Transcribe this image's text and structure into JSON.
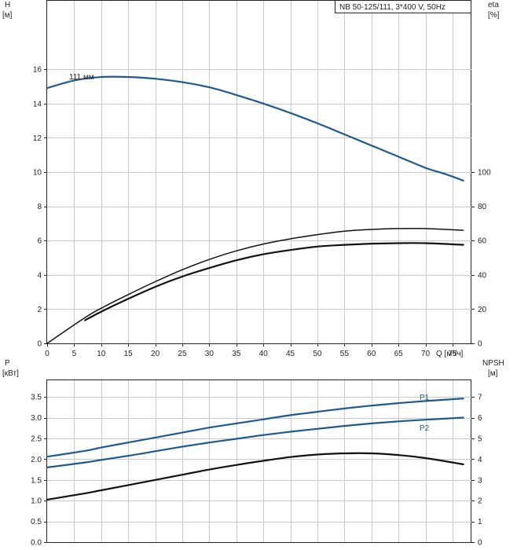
{
  "chart_data": [
    {
      "type": "line",
      "title": "NB 50-125/111, 3*400 V, 50Hz",
      "xlabel": "Q [м³/ч]",
      "x_ticks": [
        0,
        5,
        10,
        15,
        20,
        25,
        30,
        35,
        40,
        45,
        50,
        55,
        60,
        65,
        70,
        75
      ],
      "xlim": [
        0,
        78.5
      ],
      "grid": true,
      "left_axis": {
        "label_line1": "H",
        "label_line2": "[м]",
        "ylim": [
          0,
          20
        ],
        "ticks": [
          0,
          2,
          4,
          6,
          8,
          10,
          12,
          14,
          16
        ]
      },
      "right_axis": {
        "label_line1": "eta",
        "label_line2": "[%]",
        "ylim": [
          0,
          200
        ],
        "ticks": [
          0,
          20,
          40,
          60,
          80,
          100
        ]
      },
      "series": [
        {
          "name": "111 мм",
          "axis": "left",
          "color": "#1f5a8f",
          "x": [
            0,
            5,
            10,
            15,
            20,
            25,
            30,
            35,
            40,
            45,
            50,
            55,
            60,
            65,
            70,
            74,
            77
          ],
          "y": [
            14.9,
            15.35,
            15.55,
            15.55,
            15.45,
            15.25,
            14.95,
            14.5,
            14.0,
            13.45,
            12.85,
            12.2,
            11.55,
            10.9,
            10.25,
            9.85,
            9.5
          ]
        },
        {
          "axis": "right",
          "color": "#111111",
          "x": [
            0,
            7,
            10,
            15,
            20,
            25,
            30,
            35,
            40,
            45,
            50,
            55,
            60,
            65,
            70,
            77
          ],
          "y": [
            0,
            15,
            20.5,
            28.5,
            36,
            43,
            49,
            54,
            58,
            61,
            63.5,
            65.5,
            66.5,
            67,
            67,
            66
          ]
        },
        {
          "axis": "right",
          "color": "#111111",
          "x": [
            7,
            10,
            15,
            20,
            25,
            30,
            35,
            40,
            45,
            50,
            55,
            60,
            65,
            70,
            77
          ],
          "y": [
            13.5,
            18.5,
            26,
            33,
            39,
            44,
            48.5,
            52,
            54.5,
            56.5,
            57.5,
            58.2,
            58.5,
            58.5,
            57.5
          ]
        }
      ]
    },
    {
      "type": "line",
      "xlim": [
        0,
        78.5
      ],
      "grid": true,
      "left_axis": {
        "label_line1": "P",
        "label_line2": "[кВт]",
        "ylim": [
          0,
          3.9
        ],
        "ticks": [
          0.0,
          0.5,
          1.0,
          1.5,
          2.0,
          2.5,
          3.0,
          3.5
        ]
      },
      "right_axis": {
        "label_line1": "NPSH",
        "label_line2": "[м]",
        "ylim": [
          0,
          7.8
        ],
        "ticks": [
          0,
          1,
          2,
          3,
          4,
          5,
          6,
          7
        ]
      },
      "series": [
        {
          "name": "P1",
          "axis": "left",
          "color": "#1f5a8f",
          "x": [
            0,
            7,
            10,
            15,
            20,
            25,
            30,
            35,
            40,
            45,
            50,
            55,
            60,
            65,
            70,
            77
          ],
          "y": [
            2.06,
            2.2,
            2.28,
            2.4,
            2.52,
            2.64,
            2.76,
            2.86,
            2.96,
            3.06,
            3.14,
            3.22,
            3.29,
            3.35,
            3.4,
            3.46
          ]
        },
        {
          "name": "P2",
          "axis": "left",
          "color": "#1f5a8f",
          "x": [
            0,
            7,
            10,
            15,
            20,
            25,
            30,
            35,
            40,
            45,
            50,
            55,
            60,
            65,
            70,
            77
          ],
          "y": [
            1.8,
            1.92,
            1.98,
            2.08,
            2.19,
            2.3,
            2.4,
            2.49,
            2.58,
            2.66,
            2.73,
            2.8,
            2.86,
            2.91,
            2.95,
            3.0
          ]
        },
        {
          "axis": "right",
          "color": "#111111",
          "x": [
            0,
            7,
            10,
            15,
            20,
            25,
            30,
            35,
            40,
            45,
            50,
            55,
            60,
            65,
            70,
            77
          ],
          "y": [
            2.05,
            2.35,
            2.5,
            2.75,
            3.0,
            3.25,
            3.5,
            3.72,
            3.92,
            4.1,
            4.22,
            4.28,
            4.28,
            4.2,
            4.05,
            3.75
          ]
        }
      ]
    }
  ]
}
